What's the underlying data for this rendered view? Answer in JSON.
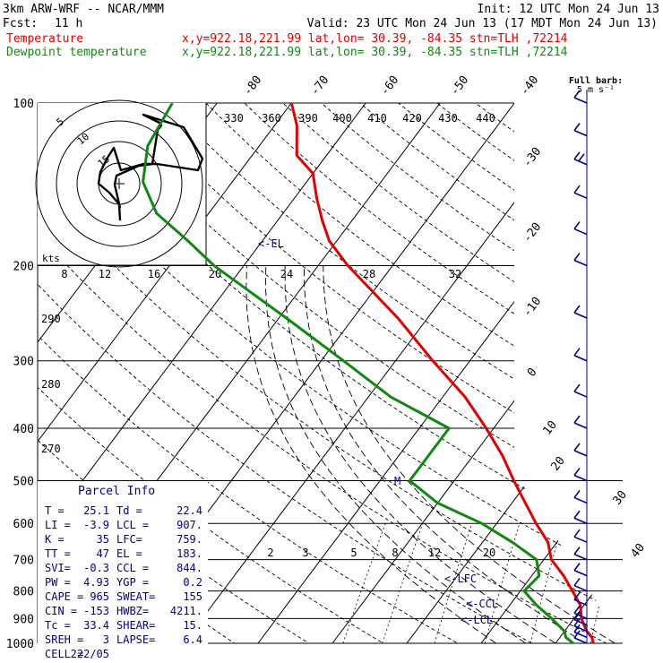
{
  "header": {
    "model": "3km ARW-WRF -- NCAR/MMM",
    "init": "Init: 12 UTC Mon 24 Jun 13",
    "fcst_label": "Fcst:",
    "fcst_value": "11 h",
    "valid": "Valid: 23 UTC Mon 24 Jun 13 (17 MDT Mon 24 Jun 13)",
    "temperature_label": "Temperature",
    "dewpoint_label": "Dewpoint temperature",
    "temperature_loc": "x,y=922.18,221.99   lat,lon= 30.39, -84.35   stn=TLH ,72214",
    "dewpoint_loc": "x,y=922.18,221.99   lat,lon= 30.39, -84.35   stn=TLH ,72214"
  },
  "colors": {
    "temperature": "#e00000",
    "dewpoint": "#118811",
    "wind_barbs": "#00008b",
    "parcel_text": "#00008b",
    "grid": "#000000"
  },
  "full_barb_label": "Full barb:",
  "full_barb_units": "5 m s⁻¹",
  "parcel_info": {
    "title": "Parcel Info",
    "rows": [
      [
        "T  =",
        "25.1",
        "Td =",
        "22.4"
      ],
      [
        "LI =",
        "-3.9",
        "LCL =",
        "907."
      ],
      [
        "K  =",
        "35",
        "LFC=",
        "759."
      ],
      [
        "TT =",
        "47",
        "EL =",
        "183."
      ],
      [
        "SVI=",
        "-0.3",
        "CCL =",
        "844."
      ],
      [
        "PW =",
        "4.93",
        "YGP =",
        "0.2"
      ],
      [
        "CAPE =",
        "965",
        "SWEAT=",
        "155"
      ],
      [
        "CIN =",
        "-153",
        "HWBZ=",
        "4211."
      ],
      [
        "Tc =",
        "33.4",
        "SHEAR=",
        "15."
      ],
      [
        "SREH =",
        "3",
        "LAPSE=",
        "6.4"
      ],
      [
        "CELL =",
        "222/05",
        "",
        ""
      ]
    ]
  },
  "level_markers": {
    "el": "<-EL",
    "lfc": "<-LFC",
    "ccl": "<-CCL",
    "lcl": "<-LCL",
    "m": "M"
  },
  "hodograph": {
    "kts_label": "kts",
    "ring_labels": [
      "5",
      "10",
      "15"
    ]
  },
  "chart_data": {
    "type": "line",
    "chart_kind": "skew-T log-p sounding",
    "y_axis": {
      "scale": "log",
      "direction": "pressure decreasing upward",
      "range_hpa": [
        1000,
        100
      ],
      "ticks": [
        "100",
        "200",
        "300",
        "400",
        "500",
        "600",
        "700",
        "800",
        "900",
        "1000"
      ]
    },
    "isotherm_labels": [
      "-80",
      "-70",
      "-60",
      "-50",
      "-40",
      "-30",
      "-20",
      "-10",
      "0",
      "10",
      "20",
      "30",
      "40"
    ],
    "theta_labels": [
      "330",
      "360",
      "390",
      "400",
      "410",
      "420",
      "430",
      "440"
    ],
    "mixing_ratio_labels_upper": [
      "8",
      "12",
      "16",
      "20",
      "24",
      "28",
      "32"
    ],
    "mixing_ratio_labels_lower": [
      "2",
      "3",
      "5",
      "8",
      "12",
      "20"
    ],
    "left_labels": [
      "290",
      "280",
      "270"
    ],
    "series": [
      {
        "name": "Temperature",
        "points": [
          {
            "p": 1000,
            "t": 25.1
          },
          {
            "p": 975,
            "t": 24.3
          },
          {
            "p": 950,
            "t": 23.0
          },
          {
            "p": 925,
            "t": 22.0
          },
          {
            "p": 900,
            "t": 21.0
          },
          {
            "p": 850,
            "t": 19.5
          },
          {
            "p": 800,
            "t": 17.0
          },
          {
            "p": 750,
            "t": 14.3
          },
          {
            "p": 700,
            "t": 11.0
          },
          {
            "p": 650,
            "t": 8.8
          },
          {
            "p": 600,
            "t": 5.3
          },
          {
            "p": 550,
            "t": 1.8
          },
          {
            "p": 500,
            "t": -2.0
          },
          {
            "p": 450,
            "t": -6.0
          },
          {
            "p": 400,
            "t": -11.0
          },
          {
            "p": 350,
            "t": -17.0
          },
          {
            "p": 300,
            "t": -25.0
          },
          {
            "p": 250,
            "t": -34.0
          },
          {
            "p": 200,
            "t": -46.0
          },
          {
            "p": 180,
            "t": -51.0
          },
          {
            "p": 165,
            "t": -54.0
          },
          {
            "p": 150,
            "t": -57.0
          },
          {
            "p": 135,
            "t": -60.0
          },
          {
            "p": 125,
            "t": -64.0
          },
          {
            "p": 110,
            "t": -67.0
          },
          {
            "p": 100,
            "t": -70.0
          }
        ]
      },
      {
        "name": "Dewpoint temperature",
        "points": [
          {
            "p": 1000,
            "t": 22.4
          },
          {
            "p": 975,
            "t": 20.8
          },
          {
            "p": 950,
            "t": 20.0
          },
          {
            "p": 900,
            "t": 17.0
          },
          {
            "p": 850,
            "t": 13.6
          },
          {
            "p": 800,
            "t": 10.5
          },
          {
            "p": 750,
            "t": 11.0
          },
          {
            "p": 700,
            "t": 9.0
          },
          {
            "p": 650,
            "t": 4.0
          },
          {
            "p": 600,
            "t": -2.0
          },
          {
            "p": 550,
            "t": -10.0
          },
          {
            "p": 500,
            "t": -16.0
          },
          {
            "p": 450,
            "t": -16.0
          },
          {
            "p": 400,
            "t": -16.0
          },
          {
            "p": 350,
            "t": -27.0
          },
          {
            "p": 300,
            "t": -37.0
          },
          {
            "p": 250,
            "t": -49.0
          },
          {
            "p": 200,
            "t": -64.0
          },
          {
            "p": 180,
            "t": -70.0
          },
          {
            "p": 160,
            "t": -77.0
          },
          {
            "p": 140,
            "t": -82.0
          },
          {
            "p": 120,
            "t": -85.0
          },
          {
            "p": 100,
            "t": -86.0
          }
        ]
      }
    ],
    "wind_barbs": [
      {
        "p": 1000,
        "speed_ms": 4
      },
      {
        "p": 975,
        "speed_ms": 5
      },
      {
        "p": 950,
        "speed_ms": 5
      },
      {
        "p": 925,
        "speed_ms": 5
      },
      {
        "p": 900,
        "speed_ms": 5
      },
      {
        "p": 850,
        "speed_ms": 5
      },
      {
        "p": 800,
        "speed_ms": 5
      },
      {
        "p": 750,
        "speed_ms": 5
      },
      {
        "p": 700,
        "speed_ms": 5
      },
      {
        "p": 650,
        "speed_ms": 5
      },
      {
        "p": 600,
        "speed_ms": 7
      },
      {
        "p": 550,
        "speed_ms": 7
      },
      {
        "p": 500,
        "speed_ms": 7
      },
      {
        "p": 450,
        "speed_ms": 7
      },
      {
        "p": 400,
        "speed_ms": 7
      },
      {
        "p": 350,
        "speed_ms": 7
      },
      {
        "p": 300,
        "speed_ms": 7
      },
      {
        "p": 250,
        "speed_ms": 5
      },
      {
        "p": 200,
        "speed_ms": 2
      },
      {
        "p": 175,
        "speed_ms": 7
      },
      {
        "p": 150,
        "speed_ms": 7
      },
      {
        "p": 130,
        "speed_ms": 10
      },
      {
        "p": 115,
        "speed_ms": 7
      },
      {
        "p": 100,
        "speed_ms": 7
      }
    ]
  }
}
